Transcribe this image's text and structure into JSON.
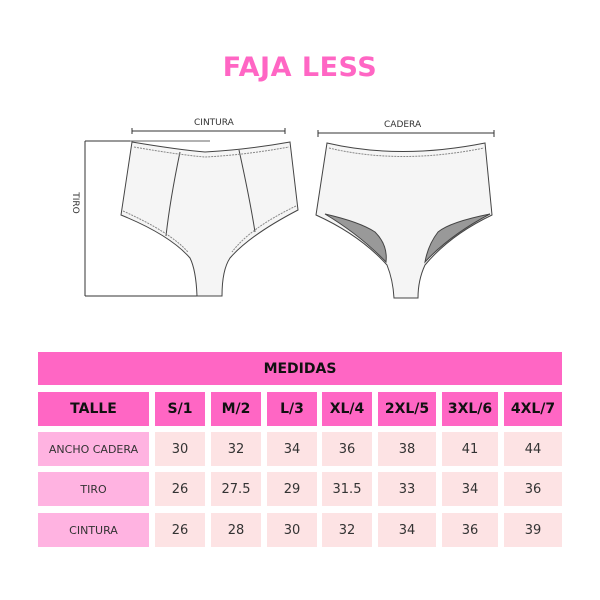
{
  "title": "FAJA LESS",
  "colors": {
    "accent": "#ff66c4",
    "label_cell": "#ffb3e1",
    "value_cell": "#fde3e4"
  },
  "diagram": {
    "cintura_label": "CINTURA",
    "cadera_label": "CADERA",
    "tiro_label": "TIRO"
  },
  "table": {
    "title": "MEDIDAS",
    "header": [
      "TALLE",
      "S/1",
      "M/2",
      "L/3",
      "XL/4",
      "2XL/5",
      "3XL/6",
      "4XL/7"
    ],
    "rows": [
      {
        "label": "ANCHO CADERA",
        "values": [
          "30",
          "32",
          "34",
          "36",
          "38",
          "41",
          "44"
        ]
      },
      {
        "label": "TIRO",
        "values": [
          "26",
          "27.5",
          "29",
          "31.5",
          "33",
          "34",
          "36"
        ]
      },
      {
        "label": "CINTURA",
        "values": [
          "26",
          "28",
          "30",
          "32",
          "34",
          "36",
          "39"
        ]
      }
    ]
  }
}
